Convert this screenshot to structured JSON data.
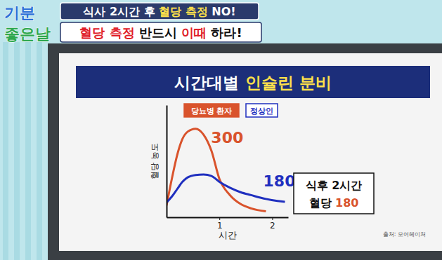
{
  "page": {
    "logo": [
      "기분",
      "좋은날"
    ],
    "headlines": [
      [
        {
          "text": "식사 2시간 후 ",
          "highlight": false
        },
        {
          "text": "혈당 측정",
          "highlight": true
        },
        {
          "text": " NO!",
          "highlight": false
        }
      ],
      [
        {
          "text": "혈당 측정",
          "highlight": true
        },
        {
          "text": " 반드시 ",
          "highlight": false
        },
        {
          "text": "이때",
          "highlight": true
        },
        {
          "text": " 하라!",
          "highlight": false
        }
      ]
    ],
    "source": "출처: 모어헤이처"
  },
  "chart_data": {
    "type": "line",
    "title": "시간대별 인슐린 분비",
    "x_label": "시간",
    "y_label": "혈당 농도",
    "x": [
      0,
      0.1,
      0.2,
      0.3,
      0.4,
      0.55,
      0.7,
      0.85,
      1.0,
      1.2,
      1.4,
      1.6,
      1.88,
      2.1,
      2.24
    ],
    "series": [
      {
        "name": "당뇨병 환자",
        "color": "#d9532c",
        "values": [
          40,
          130,
          210,
          265,
          290,
          300,
          280,
          225,
          130,
          75,
          45,
          30,
          20,
          null,
          null
        ]
      },
      {
        "name": "정상인",
        "color": "#1f2fbf",
        "values": [
          50,
          70,
          95,
          120,
          135,
          143,
          145,
          140,
          120,
          100,
          85,
          75,
          62,
          55,
          52
        ]
      }
    ],
    "xlim": [
      0,
      2.3
    ],
    "xticks": [
      1,
      2
    ],
    "ylim": [
      0,
      380
    ],
    "yticks": [],
    "tick_labels": "x",
    "grid": false,
    "legend": "top-left",
    "annotations": [
      "300",
      "180"
    ],
    "note": {
      "lines": [
        "식후 2시간",
        "혈당 180"
      ]
    }
  }
}
